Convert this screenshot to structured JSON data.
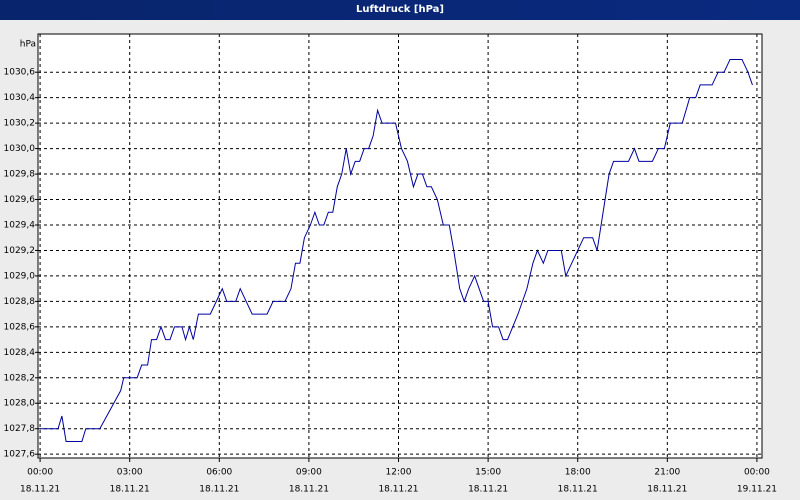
{
  "chart_data": {
    "type": "line",
    "title": "Luftdruck [hPa]",
    "y_label": "hPa",
    "x": [
      0,
      0.6,
      0.73,
      0.87,
      1.4,
      1.53,
      2.0,
      2.7,
      2.8,
      3.25,
      3.4,
      3.6,
      3.73,
      3.9,
      4.05,
      4.2,
      4.35,
      4.5,
      4.75,
      4.87,
      5.0,
      5.13,
      5.3,
      5.7,
      5.9,
      6.1,
      6.25,
      6.55,
      6.7,
      7.1,
      7.6,
      7.8,
      8.2,
      8.4,
      8.55,
      8.7,
      8.85,
      9.05,
      9.2,
      9.35,
      9.5,
      9.65,
      9.8,
      9.95,
      10.1,
      10.25,
      10.4,
      10.55,
      10.7,
      10.85,
      11.0,
      11.15,
      11.3,
      11.45,
      11.9,
      12.1,
      12.3,
      12.5,
      12.65,
      12.8,
      12.95,
      13.1,
      13.3,
      13.5,
      13.7,
      13.85,
      14.05,
      14.2,
      14.35,
      14.55,
      14.7,
      14.85,
      15.0,
      15.15,
      15.35,
      15.5,
      15.65,
      16.0,
      16.3,
      16.5,
      16.65,
      16.85,
      17.0,
      17.45,
      17.6,
      17.8,
      18.0,
      18.2,
      18.5,
      18.65,
      18.85,
      19.05,
      19.2,
      19.7,
      19.9,
      20.05,
      20.5,
      20.7,
      20.9,
      21.1,
      21.5,
      21.75,
      21.95,
      22.1,
      22.5,
      22.7,
      22.9,
      23.1,
      23.5,
      23.7,
      23.85
    ],
    "series": [
      {
        "color": "#0000a0",
        "values": [
          1027.8,
          1027.8,
          1027.9,
          1027.7,
          1027.7,
          1027.8,
          1027.8,
          1028.1,
          1028.2,
          1028.2,
          1028.3,
          1028.3,
          1028.5,
          1028.5,
          1028.6,
          1028.5,
          1028.5,
          1028.6,
          1028.6,
          1028.5,
          1028.6,
          1028.5,
          1028.7,
          1028.7,
          1028.8,
          1028.9,
          1028.8,
          1028.8,
          1028.9,
          1028.7,
          1028.7,
          1028.8,
          1028.8,
          1028.9,
          1029.1,
          1029.1,
          1029.3,
          1029.4,
          1029.5,
          1029.4,
          1029.4,
          1029.5,
          1029.5,
          1029.7,
          1029.8,
          1030.0,
          1029.8,
          1029.9,
          1029.9,
          1030.0,
          1030.0,
          1030.1,
          1030.3,
          1030.2,
          1030.2,
          1030.0,
          1029.9,
          1029.7,
          1029.8,
          1029.8,
          1029.7,
          1029.7,
          1029.6,
          1029.4,
          1029.4,
          1029.2,
          1028.9,
          1028.8,
          1028.9,
          1029.0,
          1028.9,
          1028.8,
          1028.8,
          1028.6,
          1028.6,
          1028.5,
          1028.5,
          1028.7,
          1028.9,
          1029.1,
          1029.2,
          1029.1,
          1029.2,
          1029.2,
          1029.0,
          1029.1,
          1029.2,
          1029.3,
          1029.3,
          1029.2,
          1029.5,
          1029.8,
          1029.9,
          1029.9,
          1030.0,
          1029.9,
          1029.9,
          1030.0,
          1030.0,
          1030.2,
          1030.2,
          1030.4,
          1030.4,
          1030.5,
          1030.5,
          1030.6,
          1030.6,
          1030.7,
          1030.7,
          1030.6,
          1030.5
        ]
      }
    ],
    "xlim": [
      -0.07,
      24.17
    ],
    "xticks": [
      {
        "value": 0,
        "label": [
          "00:00",
          "18.11.21"
        ]
      },
      {
        "value": 3,
        "label": [
          "03:00",
          "18.11.21"
        ]
      },
      {
        "value": 6,
        "label": [
          "06:00",
          "18.11.21"
        ]
      },
      {
        "value": 9,
        "label": [
          "09:00",
          "18.11.21"
        ]
      },
      {
        "value": 12,
        "label": [
          "12:00",
          "18.11.21"
        ]
      },
      {
        "value": 15,
        "label": [
          "15:00",
          "18.11.21"
        ]
      },
      {
        "value": 18,
        "label": [
          "18:00",
          "18.11.21"
        ]
      },
      {
        "value": 21,
        "label": [
          "21:00",
          "18.11.21"
        ]
      },
      {
        "value": 24,
        "label": [
          "00:00",
          "19.11.21"
        ]
      }
    ],
    "ylim": [
      1027.57,
      1030.9
    ],
    "yticks": [
      {
        "value": 1027.6,
        "label": "1027,6"
      },
      {
        "value": 1027.8,
        "label": "1027,8"
      },
      {
        "value": 1028.0,
        "label": "1028,0"
      },
      {
        "value": 1028.2,
        "label": "1028,2"
      },
      {
        "value": 1028.4,
        "label": "1028,4"
      },
      {
        "value": 1028.6,
        "label": "1028,6"
      },
      {
        "value": 1028.8,
        "label": "1028,8"
      },
      {
        "value": 1029.0,
        "label": "1029,0"
      },
      {
        "value": 1029.2,
        "label": "1029,2"
      },
      {
        "value": 1029.4,
        "label": "1029,4"
      },
      {
        "value": 1029.6,
        "label": "1029,6"
      },
      {
        "value": 1029.8,
        "label": "1029,8"
      },
      {
        "value": 1030.0,
        "label": "1030,0"
      },
      {
        "value": 1030.2,
        "label": "1030,2"
      },
      {
        "value": 1030.4,
        "label": "1030,4"
      },
      {
        "value": 1030.6,
        "label": "1030,6"
      }
    ],
    "grid": true
  }
}
